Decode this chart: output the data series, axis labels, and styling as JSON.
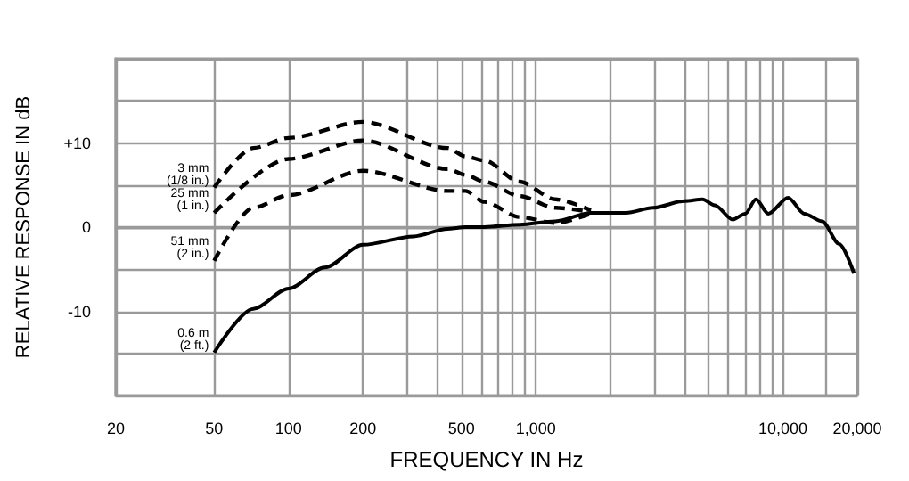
{
  "chart_data": {
    "type": "line",
    "xlabel": "FREQUENCY IN Hz",
    "ylabel": "RELATIVE RESPONSE IN dB",
    "log": "x",
    "grid": true,
    "legend": false,
    "marker": "none",
    "xlim": [
      20,
      20000
    ],
    "ylim": [
      -20,
      20
    ],
    "xticks": [
      20,
      50,
      100,
      200,
      {
        "value": 300,
        "label": null
      },
      {
        "value": 400,
        "label": null
      },
      500,
      {
        "value": 600,
        "label": null
      },
      {
        "value": 700,
        "label": null
      },
      {
        "value": 800,
        "label": null
      },
      {
        "value": 900,
        "label": null
      },
      {
        "value": 1000,
        "label": "1,000"
      },
      {
        "value": 2000,
        "label": null
      },
      {
        "value": 3000,
        "label": null
      },
      {
        "value": 4000,
        "label": null
      },
      {
        "value": 5000,
        "label": null
      },
      {
        "value": 6000,
        "label": null
      },
      {
        "value": 7000,
        "label": null
      },
      {
        "value": 8000,
        "label": null
      },
      {
        "value": 9000,
        "label": null
      },
      {
        "value": 10000,
        "label": "10,000"
      },
      {
        "value": 15000,
        "label": null
      },
      {
        "value": 20000,
        "label": "20,000"
      }
    ],
    "yticks": [
      {
        "value": -20,
        "label": null
      },
      {
        "value": -15,
        "label": null
      },
      -10,
      {
        "value": -5,
        "label": null
      },
      0,
      {
        "value": 5,
        "label": null
      },
      {
        "value": 10,
        "label": "+10"
      },
      {
        "value": 15,
        "label": null
      },
      {
        "value": 20,
        "label": null
      }
    ],
    "series": [
      {
        "name": "3 mm\n(1/8 in.)",
        "color": "#000000",
        "line_style": "dashed",
        "x": [
          50,
          72,
          100,
          200,
          440,
          520,
          620,
          860,
          1200,
          1670
        ],
        "values": [
          4.7,
          9.4,
          10.6,
          12.5,
          9.4,
          8.4,
          7.9,
          5.4,
          3.3,
          2
        ]
      },
      {
        "name": "25 mm\n(1 in.)",
        "color": "#000000",
        "line_style": "dashed",
        "x": [
          50,
          100,
          200,
          440,
          520,
          620,
          860,
          1200,
          1670
        ],
        "values": [
          1.7,
          8.1,
          10.3,
          6.9,
          6.2,
          5.4,
          3.7,
          2.3,
          1.8
        ]
      },
      {
        "name": "51 mm\n(2 in.)",
        "color": "#000000",
        "line_style": "dashed",
        "x": [
          50,
          72,
          100,
          200,
          440,
          520,
          620,
          860,
          1200,
          1670
        ],
        "values": [
          -4,
          2.3,
          3.8,
          6.7,
          4.3,
          4.3,
          3,
          1.2,
          0.5,
          1.6
        ]
      },
      {
        "name": "0.6 m\n(2 ft.)",
        "color": "#000000",
        "line_style": "solid",
        "x": [
          50,
          72,
          100,
          140,
          200,
          320,
          440,
          520,
          620,
          860,
          1200,
          1670,
          2320,
          2980,
          4000,
          4730,
          5300,
          6270,
          7040,
          7780,
          8730,
          10500,
          12200,
          14400,
          16900,
          19400
        ],
        "values": [
          -14.9,
          -9.7,
          -7.3,
          -4.8,
          -2.1,
          -1.1,
          -0.2,
          0,
          0,
          0.3,
          0.7,
          1.7,
          1.7,
          2.3,
          3.1,
          3.3,
          2.6,
          0.9,
          1.6,
          3.3,
          1.6,
          3.5,
          1.6,
          0.7,
          -2,
          -5.5
        ]
      }
    ]
  }
}
